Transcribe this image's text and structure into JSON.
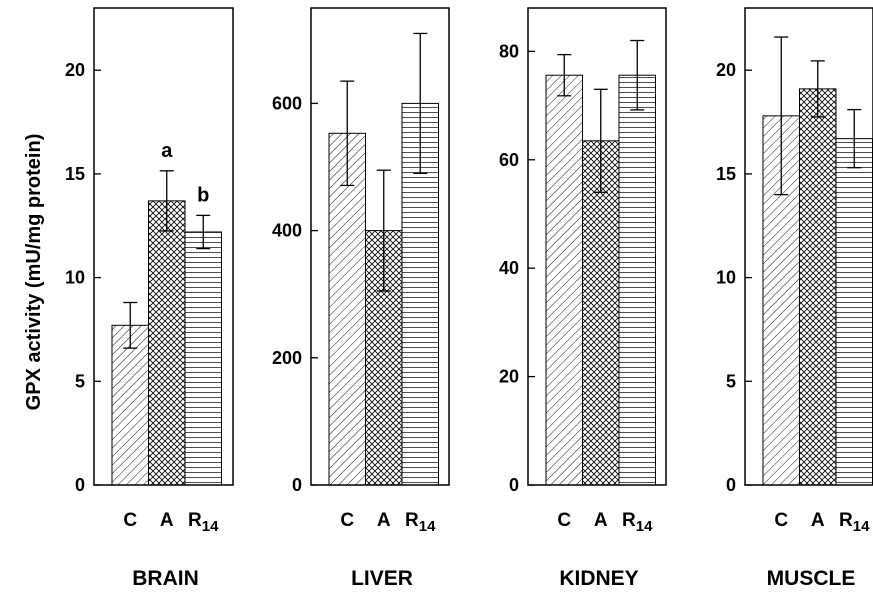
{
  "chart_data": {
    "type": "bar",
    "ylabel": "GPX activity (mU/mg protein)",
    "categories": [
      "C",
      "A",
      "R14"
    ],
    "category_display": [
      {
        "main": "C",
        "sub": ""
      },
      {
        "main": "A",
        "sub": ""
      },
      {
        "main": "R",
        "sub": "14"
      }
    ],
    "patterns": [
      "diagonal-hatch",
      "cross-hatch",
      "horizontal-lines"
    ],
    "grid": false,
    "panels": [
      {
        "title": "BRAIN",
        "ylim": [
          0,
          23
        ],
        "yticks": [
          0,
          5,
          10,
          15,
          20
        ],
        "values": [
          7.7,
          13.7,
          12.2
        ],
        "errors": [
          1.1,
          1.45,
          0.8
        ],
        "annotations": [
          "",
          "a",
          "b"
        ]
      },
      {
        "title": "LIVER",
        "ylim": [
          0,
          750
        ],
        "yticks": [
          0,
          200,
          400,
          600
        ],
        "values": [
          553,
          400,
          600
        ],
        "errors": [
          82,
          95,
          110
        ],
        "annotations": [
          "",
          "",
          ""
        ]
      },
      {
        "title": "KIDNEY",
        "ylim": [
          0,
          88
        ],
        "yticks": [
          0,
          20,
          40,
          60,
          80
        ],
        "values": [
          75.6,
          63.5,
          75.6
        ],
        "errors": [
          3.8,
          9.5,
          6.4
        ],
        "annotations": [
          "",
          "",
          ""
        ]
      },
      {
        "title": "MUSCLE",
        "ylim": [
          0,
          23
        ],
        "yticks": [
          0,
          5,
          10,
          15,
          20
        ],
        "values": [
          17.8,
          19.1,
          16.7
        ],
        "errors": [
          3.8,
          1.35,
          1.4
        ],
        "annotations": [
          "",
          "",
          ""
        ]
      }
    ]
  }
}
